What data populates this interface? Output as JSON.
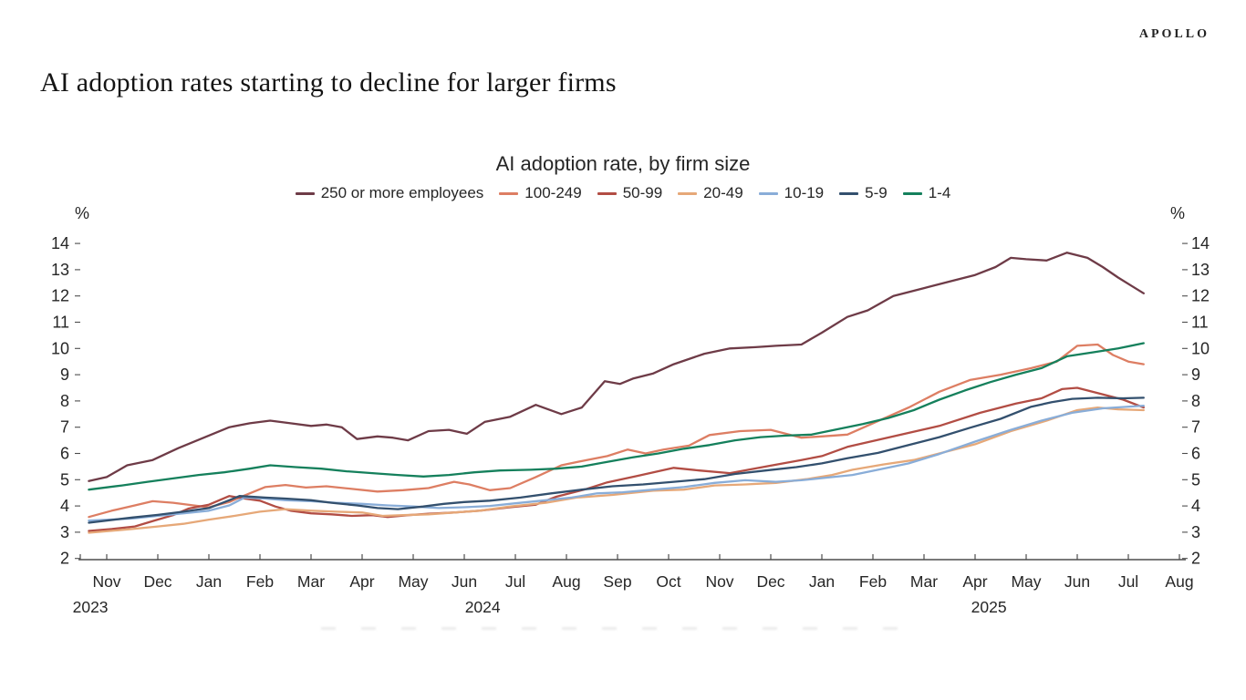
{
  "header": {
    "brand": "APOLLO",
    "page_title": "AI adoption rates starting to decline for larger firms"
  },
  "chart": {
    "title": "AI adoption rate, by firm size",
    "unit_label_left": "%",
    "unit_label_right": "%"
  },
  "chart_data": {
    "type": "line",
    "title": "AI adoption rate, by firm size",
    "ylabel": "%",
    "ylim": [
      2,
      14
    ],
    "y_ticks": [
      2,
      3,
      4,
      5,
      6,
      7,
      8,
      9,
      10,
      11,
      12,
      13,
      14
    ],
    "grid": false,
    "legend_position": "top",
    "x_unit": "month index, 0 = Nov 2023 tick",
    "x_tick_labels": [
      "Nov",
      "Dec",
      "Jan",
      "Feb",
      "Mar",
      "Apr",
      "May",
      "Jun",
      "Jul",
      "Aug",
      "Sep",
      "Oct",
      "Nov",
      "Dec",
      "Jan",
      "Feb",
      "Mar",
      "Apr",
      "May",
      "Jun",
      "Jul",
      "Aug"
    ],
    "year_labels": [
      {
        "text": "2023",
        "month_index": -0.32
      },
      {
        "text": "2024",
        "month_index": 7.36
      },
      {
        "text": "2025",
        "month_index": 17.27
      }
    ],
    "series": [
      {
        "name": "250 or more employees",
        "color": "#6e3b47",
        "points": [
          [
            -0.35,
            4.95
          ],
          [
            0,
            5.1
          ],
          [
            0.4,
            5.55
          ],
          [
            0.9,
            5.75
          ],
          [
            1.4,
            6.2
          ],
          [
            1.9,
            6.6
          ],
          [
            2.4,
            7.0
          ],
          [
            2.8,
            7.15
          ],
          [
            3.2,
            7.25
          ],
          [
            3.6,
            7.15
          ],
          [
            4.0,
            7.05
          ],
          [
            4.3,
            7.1
          ],
          [
            4.6,
            7.0
          ],
          [
            4.9,
            6.55
          ],
          [
            5.3,
            6.65
          ],
          [
            5.6,
            6.6
          ],
          [
            5.9,
            6.5
          ],
          [
            6.3,
            6.85
          ],
          [
            6.7,
            6.9
          ],
          [
            7.05,
            6.75
          ],
          [
            7.4,
            7.2
          ],
          [
            7.9,
            7.4
          ],
          [
            8.4,
            7.85
          ],
          [
            8.9,
            7.5
          ],
          [
            9.3,
            7.75
          ],
          [
            9.75,
            8.75
          ],
          [
            10.05,
            8.65
          ],
          [
            10.3,
            8.85
          ],
          [
            10.7,
            9.05
          ],
          [
            11.1,
            9.4
          ],
          [
            11.7,
            9.8
          ],
          [
            12.2,
            10.0
          ],
          [
            12.7,
            10.05
          ],
          [
            13.1,
            10.1
          ],
          [
            13.6,
            10.15
          ],
          [
            14.0,
            10.6
          ],
          [
            14.5,
            11.2
          ],
          [
            14.9,
            11.45
          ],
          [
            15.4,
            12.0
          ],
          [
            16.0,
            12.3
          ],
          [
            16.5,
            12.55
          ],
          [
            17.0,
            12.8
          ],
          [
            17.4,
            13.1
          ],
          [
            17.7,
            13.45
          ],
          [
            18.0,
            13.4
          ],
          [
            18.4,
            13.35
          ],
          [
            18.8,
            13.65
          ],
          [
            19.2,
            13.45
          ],
          [
            19.5,
            13.1
          ],
          [
            19.8,
            12.7
          ],
          [
            20.05,
            12.4
          ],
          [
            20.3,
            12.1
          ]
        ]
      },
      {
        "name": "100-249",
        "color": "#dd7e63",
        "points": [
          [
            -0.35,
            3.58
          ],
          [
            0.1,
            3.82
          ],
          [
            0.55,
            4.02
          ],
          [
            0.9,
            4.18
          ],
          [
            1.3,
            4.12
          ],
          [
            1.7,
            4.02
          ],
          [
            2.0,
            3.95
          ],
          [
            2.4,
            4.15
          ],
          [
            2.7,
            4.4
          ],
          [
            3.1,
            4.72
          ],
          [
            3.5,
            4.8
          ],
          [
            3.9,
            4.7
          ],
          [
            4.3,
            4.75
          ],
          [
            4.8,
            4.65
          ],
          [
            5.3,
            4.55
          ],
          [
            5.8,
            4.6
          ],
          [
            6.3,
            4.68
          ],
          [
            6.8,
            4.92
          ],
          [
            7.1,
            4.82
          ],
          [
            7.5,
            4.6
          ],
          [
            7.9,
            4.68
          ],
          [
            8.4,
            5.1
          ],
          [
            8.9,
            5.55
          ],
          [
            9.4,
            5.75
          ],
          [
            9.8,
            5.9
          ],
          [
            10.2,
            6.15
          ],
          [
            10.55,
            6.0
          ],
          [
            10.9,
            6.15
          ],
          [
            11.4,
            6.3
          ],
          [
            11.8,
            6.7
          ],
          [
            12.4,
            6.85
          ],
          [
            13.0,
            6.9
          ],
          [
            13.6,
            6.6
          ],
          [
            14.0,
            6.65
          ],
          [
            14.5,
            6.72
          ],
          [
            15.0,
            7.15
          ],
          [
            15.7,
            7.75
          ],
          [
            16.3,
            8.35
          ],
          [
            16.9,
            8.8
          ],
          [
            17.5,
            9.0
          ],
          [
            18.1,
            9.25
          ],
          [
            18.6,
            9.5
          ],
          [
            19.0,
            10.1
          ],
          [
            19.4,
            10.15
          ],
          [
            19.7,
            9.75
          ],
          [
            20.0,
            9.5
          ],
          [
            20.3,
            9.4
          ]
        ]
      },
      {
        "name": "50-99",
        "color": "#b24d44",
        "points": [
          [
            -0.35,
            3.05
          ],
          [
            0.1,
            3.12
          ],
          [
            0.55,
            3.22
          ],
          [
            0.95,
            3.45
          ],
          [
            1.3,
            3.65
          ],
          [
            1.6,
            3.9
          ],
          [
            2.0,
            4.05
          ],
          [
            2.4,
            4.38
          ],
          [
            2.7,
            4.28
          ],
          [
            3.0,
            4.2
          ],
          [
            3.3,
            3.98
          ],
          [
            3.6,
            3.82
          ],
          [
            4.0,
            3.72
          ],
          [
            4.4,
            3.68
          ],
          [
            4.8,
            3.62
          ],
          [
            5.2,
            3.65
          ],
          [
            5.5,
            3.58
          ],
          [
            5.9,
            3.65
          ],
          [
            6.3,
            3.7
          ],
          [
            6.8,
            3.75
          ],
          [
            7.3,
            3.82
          ],
          [
            7.9,
            3.95
          ],
          [
            8.4,
            4.05
          ],
          [
            8.8,
            4.35
          ],
          [
            9.4,
            4.65
          ],
          [
            9.8,
            4.9
          ],
          [
            10.4,
            5.15
          ],
          [
            11.1,
            5.45
          ],
          [
            11.6,
            5.35
          ],
          [
            12.2,
            5.25
          ],
          [
            12.9,
            5.5
          ],
          [
            13.6,
            5.75
          ],
          [
            14.0,
            5.9
          ],
          [
            14.5,
            6.25
          ],
          [
            15.4,
            6.65
          ],
          [
            16.3,
            7.05
          ],
          [
            17.1,
            7.55
          ],
          [
            17.8,
            7.9
          ],
          [
            18.3,
            8.1
          ],
          [
            18.7,
            8.45
          ],
          [
            19.0,
            8.5
          ],
          [
            19.4,
            8.3
          ],
          [
            19.9,
            8.05
          ],
          [
            20.3,
            7.75
          ]
        ]
      },
      {
        "name": "20-49",
        "color": "#e6a878",
        "points": [
          [
            -0.35,
            2.98
          ],
          [
            0.5,
            3.12
          ],
          [
            1,
            3.22
          ],
          [
            1.5,
            3.32
          ],
          [
            2,
            3.48
          ],
          [
            2.5,
            3.62
          ],
          [
            3,
            3.78
          ],
          [
            3.5,
            3.88
          ],
          [
            4,
            3.82
          ],
          [
            4.5,
            3.78
          ],
          [
            5,
            3.75
          ],
          [
            5.4,
            3.62
          ],
          [
            5.8,
            3.65
          ],
          [
            6.3,
            3.68
          ],
          [
            6.8,
            3.75
          ],
          [
            7.3,
            3.82
          ],
          [
            7.9,
            3.98
          ],
          [
            8.6,
            4.12
          ],
          [
            9.2,
            4.32
          ],
          [
            9.9,
            4.42
          ],
          [
            10.7,
            4.58
          ],
          [
            11.3,
            4.62
          ],
          [
            11.9,
            4.78
          ],
          [
            12.5,
            4.82
          ],
          [
            13.1,
            4.88
          ],
          [
            13.7,
            5.02
          ],
          [
            14.2,
            5.18
          ],
          [
            14.6,
            5.38
          ],
          [
            15.2,
            5.58
          ],
          [
            15.8,
            5.75
          ],
          [
            16.3,
            6.0
          ],
          [
            17.0,
            6.35
          ],
          [
            17.7,
            6.85
          ],
          [
            18.4,
            7.25
          ],
          [
            19.0,
            7.65
          ],
          [
            19.4,
            7.75
          ],
          [
            19.8,
            7.68
          ],
          [
            20.3,
            7.65
          ]
        ]
      },
      {
        "name": "10-19",
        "color": "#89add8",
        "points": [
          [
            -0.35,
            3.44
          ],
          [
            0.5,
            3.52
          ],
          [
            1,
            3.62
          ],
          [
            1.5,
            3.72
          ],
          [
            2,
            3.82
          ],
          [
            2.4,
            4.02
          ],
          [
            2.7,
            4.32
          ],
          [
            3.1,
            4.28
          ],
          [
            3.5,
            4.22
          ],
          [
            4,
            4.18
          ],
          [
            4.5,
            4.12
          ],
          [
            5,
            4.08
          ],
          [
            5.5,
            4.02
          ],
          [
            6,
            3.98
          ],
          [
            6.5,
            3.92
          ],
          [
            7,
            3.95
          ],
          [
            7.5,
            4.0
          ],
          [
            8,
            4.1
          ],
          [
            8.6,
            4.22
          ],
          [
            9.1,
            4.32
          ],
          [
            9.6,
            4.48
          ],
          [
            10.1,
            4.52
          ],
          [
            10.7,
            4.62
          ],
          [
            11.3,
            4.72
          ],
          [
            11.9,
            4.88
          ],
          [
            12.5,
            4.98
          ],
          [
            13.1,
            4.92
          ],
          [
            13.6,
            4.98
          ],
          [
            14.1,
            5.08
          ],
          [
            14.6,
            5.18
          ],
          [
            15.1,
            5.38
          ],
          [
            15.7,
            5.62
          ],
          [
            16.3,
            5.98
          ],
          [
            17.0,
            6.45
          ],
          [
            17.7,
            6.9
          ],
          [
            18.3,
            7.25
          ],
          [
            18.9,
            7.55
          ],
          [
            19.5,
            7.72
          ],
          [
            20.3,
            7.82
          ]
        ]
      },
      {
        "name": "5-9",
        "color": "#33506e",
        "points": [
          [
            -0.35,
            3.36
          ],
          [
            0.5,
            3.56
          ],
          [
            1,
            3.66
          ],
          [
            1.5,
            3.78
          ],
          [
            2,
            3.92
          ],
          [
            2.4,
            4.22
          ],
          [
            2.6,
            4.38
          ],
          [
            3.1,
            4.32
          ],
          [
            3.5,
            4.28
          ],
          [
            4,
            4.22
          ],
          [
            4.4,
            4.12
          ],
          [
            4.9,
            4.02
          ],
          [
            5.3,
            3.92
          ],
          [
            5.7,
            3.88
          ],
          [
            6.2,
            3.98
          ],
          [
            6.6,
            4.08
          ],
          [
            7.0,
            4.15
          ],
          [
            7.5,
            4.2
          ],
          [
            8.1,
            4.32
          ],
          [
            8.7,
            4.48
          ],
          [
            9.3,
            4.62
          ],
          [
            9.9,
            4.75
          ],
          [
            10.5,
            4.82
          ],
          [
            11.1,
            4.92
          ],
          [
            11.7,
            5.02
          ],
          [
            12.3,
            5.22
          ],
          [
            12.9,
            5.35
          ],
          [
            13.5,
            5.48
          ],
          [
            14.0,
            5.62
          ],
          [
            14.5,
            5.82
          ],
          [
            15.1,
            6.02
          ],
          [
            15.7,
            6.32
          ],
          [
            16.3,
            6.62
          ],
          [
            16.9,
            6.98
          ],
          [
            17.5,
            7.32
          ],
          [
            18.1,
            7.78
          ],
          [
            18.5,
            7.95
          ],
          [
            18.9,
            8.08
          ],
          [
            19.4,
            8.12
          ],
          [
            19.9,
            8.1
          ],
          [
            20.3,
            8.12
          ]
        ]
      },
      {
        "name": "1-4",
        "color": "#15805c",
        "points": [
          [
            -0.35,
            4.62
          ],
          [
            0.3,
            4.78
          ],
          [
            0.8,
            4.92
          ],
          [
            1.3,
            5.05
          ],
          [
            1.8,
            5.18
          ],
          [
            2.3,
            5.28
          ],
          [
            2.8,
            5.42
          ],
          [
            3.2,
            5.55
          ],
          [
            3.7,
            5.48
          ],
          [
            4.2,
            5.42
          ],
          [
            4.7,
            5.32
          ],
          [
            5.2,
            5.25
          ],
          [
            5.7,
            5.18
          ],
          [
            6.2,
            5.12
          ],
          [
            6.7,
            5.18
          ],
          [
            7.2,
            5.28
          ],
          [
            7.7,
            5.35
          ],
          [
            8.3,
            5.38
          ],
          [
            8.8,
            5.42
          ],
          [
            9.3,
            5.5
          ],
          [
            9.8,
            5.68
          ],
          [
            10.3,
            5.85
          ],
          [
            10.8,
            6.0
          ],
          [
            11.3,
            6.18
          ],
          [
            11.8,
            6.32
          ],
          [
            12.3,
            6.5
          ],
          [
            12.8,
            6.62
          ],
          [
            13.3,
            6.68
          ],
          [
            13.8,
            6.72
          ],
          [
            14.3,
            6.92
          ],
          [
            14.8,
            7.12
          ],
          [
            15.3,
            7.35
          ],
          [
            15.8,
            7.65
          ],
          [
            16.3,
            8.05
          ],
          [
            16.8,
            8.4
          ],
          [
            17.3,
            8.72
          ],
          [
            17.8,
            9.0
          ],
          [
            18.3,
            9.25
          ],
          [
            18.8,
            9.7
          ],
          [
            19.3,
            9.85
          ],
          [
            19.8,
            10.0
          ],
          [
            20.3,
            10.2
          ]
        ]
      }
    ]
  }
}
